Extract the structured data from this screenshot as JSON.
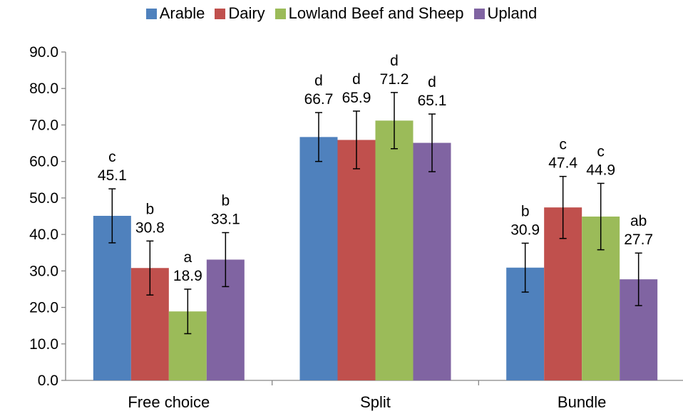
{
  "chart_data": {
    "type": "bar",
    "categories": [
      "Free choice",
      "Split",
      "Bundle"
    ],
    "series": [
      {
        "name": "Arable",
        "color": "#4F81BD",
        "values": [
          45.1,
          66.7,
          30.9
        ],
        "errors": [
          7.4,
          6.7,
          6.7
        ],
        "letters": [
          "c",
          "d",
          "b"
        ]
      },
      {
        "name": "Dairy",
        "color": "#C0504D",
        "values": [
          30.8,
          65.9,
          47.4
        ],
        "errors": [
          7.4,
          7.9,
          8.5
        ],
        "letters": [
          "b",
          "d",
          "c"
        ]
      },
      {
        "name": "Lowland Beef and Sheep",
        "color": "#9BBB59",
        "values": [
          18.9,
          71.2,
          44.9
        ],
        "errors": [
          6.1,
          7.7,
          9.1
        ],
        "letters": [
          "a",
          "d",
          "c"
        ]
      },
      {
        "name": "Upland",
        "color": "#8064A2",
        "values": [
          33.1,
          65.1,
          27.7
        ],
        "errors": [
          7.4,
          7.9,
          7.2
        ],
        "letters": [
          "b",
          "d",
          "ab"
        ]
      }
    ],
    "ylim": [
      0,
      90
    ],
    "yticks": [
      "0.0",
      "10.0",
      "20.0",
      "30.0",
      "40.0",
      "50.0",
      "60.0",
      "70.0",
      "80.0",
      "90.0"
    ],
    "ytick_values": [
      0,
      10,
      20,
      30,
      40,
      50,
      60,
      70,
      80,
      90
    ],
    "legend_position": "top",
    "grid": false,
    "error_bars": true
  }
}
